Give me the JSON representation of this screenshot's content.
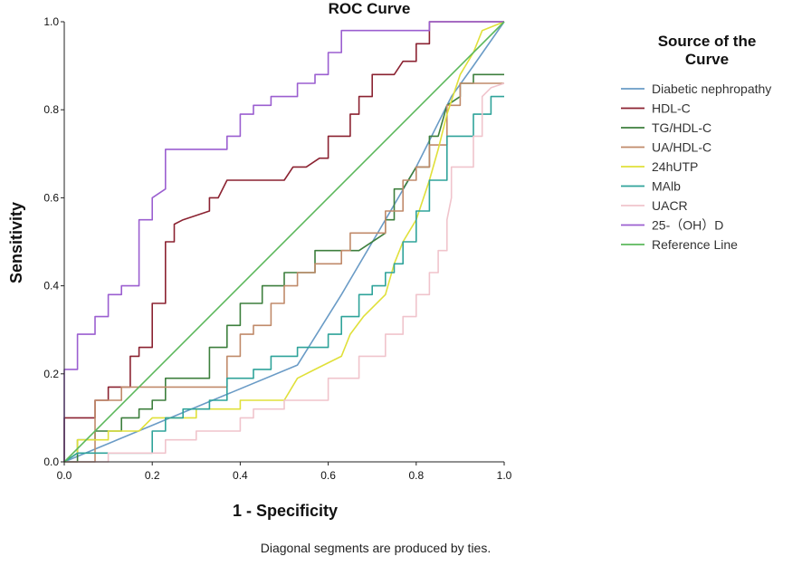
{
  "chart_data": {
    "type": "line",
    "title": "ROC Curve",
    "xlabel": "1 - Specificity",
    "ylabel": "Sensitivity",
    "xlim": [
      0,
      1
    ],
    "ylim": [
      0,
      1
    ],
    "xticks": [
      "0.0",
      "0.2",
      "0.4",
      "0.6",
      "0.8",
      "1.0"
    ],
    "yticks": [
      "0.0",
      "0.2",
      "0.4",
      "0.6",
      "0.8",
      "1.0"
    ],
    "grid": false,
    "legend_title": "Source of the Curve",
    "legend_position": "right",
    "footnote": "Diagonal segments are produced by ties.",
    "series": [
      {
        "name": "Diabetic nephropathy",
        "color": "#6a9bc6",
        "points": [
          [
            0,
            0
          ],
          [
            0.53,
            0.22
          ],
          [
            0.63,
            0.38
          ],
          [
            0.73,
            0.55
          ],
          [
            0.8,
            0.67
          ],
          [
            0.88,
            0.83
          ],
          [
            0.93,
            0.9
          ],
          [
            1.0,
            1.0
          ]
        ]
      },
      {
        "name": "HDL-C",
        "color": "#8b2231",
        "points": [
          [
            0,
            0
          ],
          [
            0,
            0.1
          ],
          [
            0.07,
            0.1
          ],
          [
            0.07,
            0.14
          ],
          [
            0.1,
            0.14
          ],
          [
            0.1,
            0.17
          ],
          [
            0.15,
            0.17
          ],
          [
            0.15,
            0.24
          ],
          [
            0.17,
            0.24
          ],
          [
            0.17,
            0.26
          ],
          [
            0.2,
            0.26
          ],
          [
            0.2,
            0.36
          ],
          [
            0.23,
            0.36
          ],
          [
            0.23,
            0.5
          ],
          [
            0.25,
            0.5
          ],
          [
            0.25,
            0.54
          ],
          [
            0.27,
            0.55
          ],
          [
            0.33,
            0.57
          ],
          [
            0.33,
            0.6
          ],
          [
            0.35,
            0.6
          ],
          [
            0.37,
            0.64
          ],
          [
            0.5,
            0.64
          ],
          [
            0.52,
            0.67
          ],
          [
            0.55,
            0.67
          ],
          [
            0.58,
            0.69
          ],
          [
            0.6,
            0.69
          ],
          [
            0.6,
            0.74
          ],
          [
            0.65,
            0.74
          ],
          [
            0.65,
            0.79
          ],
          [
            0.67,
            0.79
          ],
          [
            0.67,
            0.83
          ],
          [
            0.7,
            0.83
          ],
          [
            0.7,
            0.88
          ],
          [
            0.75,
            0.88
          ],
          [
            0.77,
            0.91
          ],
          [
            0.8,
            0.91
          ],
          [
            0.8,
            0.95
          ],
          [
            0.83,
            0.95
          ],
          [
            0.83,
            1.0
          ],
          [
            1.0,
            1.0
          ]
        ]
      },
      {
        "name": "TG/HDL-C",
        "color": "#3d7f3d",
        "points": [
          [
            0,
            0
          ],
          [
            0.03,
            0.0
          ],
          [
            0.03,
            0.05
          ],
          [
            0.07,
            0.05
          ],
          [
            0.07,
            0.07
          ],
          [
            0.13,
            0.07
          ],
          [
            0.13,
            0.1
          ],
          [
            0.17,
            0.1
          ],
          [
            0.17,
            0.12
          ],
          [
            0.2,
            0.12
          ],
          [
            0.2,
            0.14
          ],
          [
            0.23,
            0.14
          ],
          [
            0.23,
            0.19
          ],
          [
            0.33,
            0.19
          ],
          [
            0.33,
            0.26
          ],
          [
            0.37,
            0.26
          ],
          [
            0.37,
            0.31
          ],
          [
            0.4,
            0.31
          ],
          [
            0.4,
            0.36
          ],
          [
            0.45,
            0.36
          ],
          [
            0.45,
            0.4
          ],
          [
            0.5,
            0.4
          ],
          [
            0.5,
            0.43
          ],
          [
            0.57,
            0.43
          ],
          [
            0.57,
            0.48
          ],
          [
            0.67,
            0.48
          ],
          [
            0.73,
            0.52
          ],
          [
            0.73,
            0.55
          ],
          [
            0.75,
            0.55
          ],
          [
            0.75,
            0.62
          ],
          [
            0.77,
            0.62
          ],
          [
            0.8,
            0.67
          ],
          [
            0.83,
            0.67
          ],
          [
            0.83,
            0.74
          ],
          [
            0.85,
            0.74
          ],
          [
            0.87,
            0.81
          ],
          [
            0.9,
            0.83
          ],
          [
            0.9,
            0.86
          ],
          [
            0.93,
            0.86
          ],
          [
            0.93,
            0.88
          ],
          [
            1.0,
            0.88
          ]
        ]
      },
      {
        "name": "UA/HDL-C",
        "color": "#c08a6a",
        "points": [
          [
            0,
            0
          ],
          [
            0.07,
            0.0
          ],
          [
            0.07,
            0.14
          ],
          [
            0.13,
            0.14
          ],
          [
            0.13,
            0.17
          ],
          [
            0.37,
            0.17
          ],
          [
            0.37,
            0.24
          ],
          [
            0.4,
            0.24
          ],
          [
            0.4,
            0.29
          ],
          [
            0.43,
            0.29
          ],
          [
            0.43,
            0.31
          ],
          [
            0.47,
            0.31
          ],
          [
            0.47,
            0.36
          ],
          [
            0.5,
            0.36
          ],
          [
            0.5,
            0.4
          ],
          [
            0.53,
            0.4
          ],
          [
            0.53,
            0.43
          ],
          [
            0.57,
            0.43
          ],
          [
            0.57,
            0.45
          ],
          [
            0.63,
            0.45
          ],
          [
            0.63,
            0.48
          ],
          [
            0.65,
            0.48
          ],
          [
            0.65,
            0.52
          ],
          [
            0.73,
            0.52
          ],
          [
            0.73,
            0.57
          ],
          [
            0.77,
            0.57
          ],
          [
            0.77,
            0.64
          ],
          [
            0.8,
            0.64
          ],
          [
            0.8,
            0.67
          ],
          [
            0.83,
            0.67
          ],
          [
            0.83,
            0.72
          ],
          [
            0.87,
            0.72
          ],
          [
            0.87,
            0.81
          ],
          [
            0.9,
            0.81
          ],
          [
            0.9,
            0.86
          ],
          [
            1.0,
            0.86
          ]
        ]
      },
      {
        "name": "24hUTP",
        "color": "#e0e03a",
        "points": [
          [
            0,
            0
          ],
          [
            0.03,
            0.02
          ],
          [
            0.03,
            0.05
          ],
          [
            0.1,
            0.05
          ],
          [
            0.1,
            0.07
          ],
          [
            0.17,
            0.07
          ],
          [
            0.2,
            0.1
          ],
          [
            0.3,
            0.1
          ],
          [
            0.3,
            0.12
          ],
          [
            0.4,
            0.12
          ],
          [
            0.4,
            0.14
          ],
          [
            0.5,
            0.14
          ],
          [
            0.53,
            0.19
          ],
          [
            0.57,
            0.21
          ],
          [
            0.63,
            0.24
          ],
          [
            0.65,
            0.29
          ],
          [
            0.68,
            0.33
          ],
          [
            0.73,
            0.38
          ],
          [
            0.75,
            0.45
          ],
          [
            0.77,
            0.5
          ],
          [
            0.8,
            0.55
          ],
          [
            0.83,
            0.64
          ],
          [
            0.85,
            0.71
          ],
          [
            0.87,
            0.79
          ],
          [
            0.9,
            0.88
          ],
          [
            0.93,
            0.93
          ],
          [
            0.95,
            0.98
          ],
          [
            1.0,
            1.0
          ]
        ]
      },
      {
        "name": "MAlb",
        "color": "#2fa39a",
        "points": [
          [
            0,
            0
          ],
          [
            0.03,
            0.02
          ],
          [
            0.2,
            0.02
          ],
          [
            0.2,
            0.07
          ],
          [
            0.23,
            0.07
          ],
          [
            0.23,
            0.1
          ],
          [
            0.27,
            0.1
          ],
          [
            0.27,
            0.12
          ],
          [
            0.33,
            0.12
          ],
          [
            0.33,
            0.14
          ],
          [
            0.37,
            0.14
          ],
          [
            0.37,
            0.19
          ],
          [
            0.43,
            0.19
          ],
          [
            0.43,
            0.21
          ],
          [
            0.47,
            0.21
          ],
          [
            0.47,
            0.24
          ],
          [
            0.53,
            0.24
          ],
          [
            0.53,
            0.26
          ],
          [
            0.6,
            0.26
          ],
          [
            0.6,
            0.29
          ],
          [
            0.63,
            0.29
          ],
          [
            0.63,
            0.33
          ],
          [
            0.67,
            0.33
          ],
          [
            0.67,
            0.38
          ],
          [
            0.7,
            0.38
          ],
          [
            0.7,
            0.4
          ],
          [
            0.73,
            0.4
          ],
          [
            0.73,
            0.43
          ],
          [
            0.75,
            0.43
          ],
          [
            0.75,
            0.45
          ],
          [
            0.77,
            0.45
          ],
          [
            0.77,
            0.5
          ],
          [
            0.8,
            0.5
          ],
          [
            0.8,
            0.57
          ],
          [
            0.83,
            0.57
          ],
          [
            0.83,
            0.64
          ],
          [
            0.87,
            0.64
          ],
          [
            0.87,
            0.74
          ],
          [
            0.93,
            0.74
          ],
          [
            0.93,
            0.79
          ],
          [
            0.97,
            0.79
          ],
          [
            0.97,
            0.83
          ],
          [
            1.0,
            0.83
          ]
        ]
      },
      {
        "name": "UACR",
        "color": "#f0c4cc",
        "points": [
          [
            0,
            0
          ],
          [
            0.1,
            0.0
          ],
          [
            0.1,
            0.02
          ],
          [
            0.23,
            0.02
          ],
          [
            0.23,
            0.05
          ],
          [
            0.3,
            0.05
          ],
          [
            0.3,
            0.07
          ],
          [
            0.4,
            0.07
          ],
          [
            0.4,
            0.1
          ],
          [
            0.43,
            0.1
          ],
          [
            0.43,
            0.12
          ],
          [
            0.5,
            0.12
          ],
          [
            0.5,
            0.14
          ],
          [
            0.6,
            0.14
          ],
          [
            0.6,
            0.19
          ],
          [
            0.67,
            0.19
          ],
          [
            0.67,
            0.24
          ],
          [
            0.73,
            0.24
          ],
          [
            0.73,
            0.29
          ],
          [
            0.77,
            0.29
          ],
          [
            0.77,
            0.33
          ],
          [
            0.8,
            0.33
          ],
          [
            0.8,
            0.38
          ],
          [
            0.83,
            0.38
          ],
          [
            0.83,
            0.43
          ],
          [
            0.85,
            0.43
          ],
          [
            0.85,
            0.48
          ],
          [
            0.87,
            0.48
          ],
          [
            0.87,
            0.55
          ],
          [
            0.88,
            0.6
          ],
          [
            0.88,
            0.67
          ],
          [
            0.93,
            0.67
          ],
          [
            0.93,
            0.74
          ],
          [
            0.95,
            0.74
          ],
          [
            0.95,
            0.83
          ],
          [
            0.97,
            0.85
          ],
          [
            1.0,
            0.86
          ]
        ]
      },
      {
        "name": "25-（OH）D",
        "color": "#9b5fd0",
        "points": [
          [
            0,
            0
          ],
          [
            0,
            0.21
          ],
          [
            0.03,
            0.21
          ],
          [
            0.03,
            0.29
          ],
          [
            0.07,
            0.29
          ],
          [
            0.07,
            0.33
          ],
          [
            0.1,
            0.33
          ],
          [
            0.1,
            0.38
          ],
          [
            0.13,
            0.38
          ],
          [
            0.13,
            0.4
          ],
          [
            0.17,
            0.4
          ],
          [
            0.17,
            0.55
          ],
          [
            0.2,
            0.55
          ],
          [
            0.2,
            0.6
          ],
          [
            0.23,
            0.62
          ],
          [
            0.23,
            0.71
          ],
          [
            0.37,
            0.71
          ],
          [
            0.37,
            0.74
          ],
          [
            0.4,
            0.74
          ],
          [
            0.4,
            0.79
          ],
          [
            0.43,
            0.79
          ],
          [
            0.43,
            0.81
          ],
          [
            0.47,
            0.81
          ],
          [
            0.47,
            0.83
          ],
          [
            0.53,
            0.83
          ],
          [
            0.53,
            0.86
          ],
          [
            0.57,
            0.86
          ],
          [
            0.57,
            0.88
          ],
          [
            0.6,
            0.88
          ],
          [
            0.6,
            0.93
          ],
          [
            0.63,
            0.93
          ],
          [
            0.63,
            0.98
          ],
          [
            0.83,
            0.98
          ],
          [
            0.83,
            1.0
          ],
          [
            1.0,
            1.0
          ]
        ]
      },
      {
        "name": "Reference Line",
        "color": "#5cb85c",
        "points": [
          [
            0,
            0
          ],
          [
            1,
            1
          ]
        ]
      }
    ]
  }
}
